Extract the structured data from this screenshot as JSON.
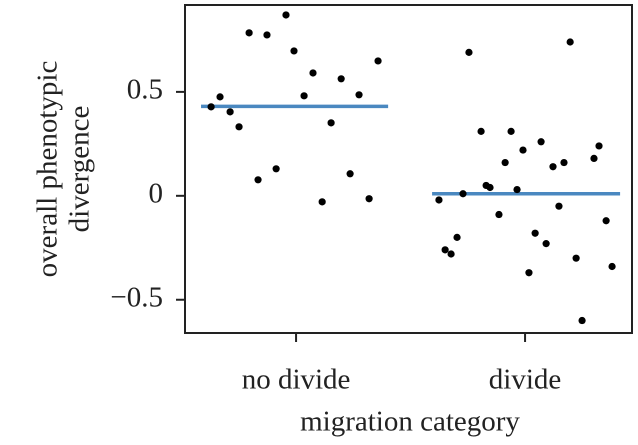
{
  "chart_data": {
    "type": "scatter",
    "xlabel": "migration category",
    "ylabel": [
      "overall phenotypic",
      "divergence"
    ],
    "xlim": [
      0.515,
      2.467
    ],
    "ylim": [
      -0.66,
      0.918
    ],
    "xticks": [
      {
        "value": 1,
        "label": "no divide"
      },
      {
        "value": 2,
        "label": "divide"
      }
    ],
    "yticks": [
      {
        "value": -0.5,
        "label": "−0.5"
      },
      0,
      0.5
    ],
    "series": [
      {
        "color": "#000000",
        "x": [
          0.629,
          0.668,
          0.712,
          0.751,
          0.795,
          0.834,
          0.873,
          0.913,
          0.956,
          0.991,
          1.035,
          1.074,
          1.114,
          1.153,
          1.197,
          1.236,
          1.275,
          1.319,
          1.358
        ],
        "values": [
          0.428,
          0.476,
          0.404,
          0.332,
          0.784,
          0.077,
          0.774,
          0.13,
          0.87,
          0.697,
          0.481,
          0.591,
          -0.029,
          0.351,
          0.563,
          0.106,
          0.486,
          -0.014,
          0.649
        ]
      },
      {
        "color": "#000000",
        "x": [
          1.624,
          1.651,
          1.677,
          1.703,
          1.729,
          1.755,
          1.808,
          1.83,
          1.847,
          1.886,
          1.913,
          1.939,
          1.965,
          1.991,
          2.017,
          2.044,
          2.07,
          2.092,
          2.122,
          2.148,
          2.17,
          2.197,
          2.223,
          2.249,
          2.301,
          2.323,
          2.354,
          2.38
        ],
        "values": [
          -0.02,
          -0.26,
          -0.28,
          -0.2,
          0.01,
          0.69,
          0.31,
          0.05,
          0.04,
          -0.09,
          0.16,
          0.31,
          0.03,
          0.22,
          -0.37,
          -0.18,
          0.26,
          -0.23,
          0.14,
          -0.05,
          0.16,
          0.74,
          -0.3,
          -0.6,
          0.18,
          0.24,
          -0.12,
          -0.34
        ]
      }
    ],
    "mean_lines": [
      {
        "color": "#4a88c0",
        "x": [
          0.585,
          1.402
        ],
        "values": [
          0.43,
          0.43
        ]
      },
      {
        "color": "#4a88c0",
        "x": [
          1.594,
          2.415
        ],
        "values": [
          0.01,
          0.01
        ]
      }
    ]
  }
}
